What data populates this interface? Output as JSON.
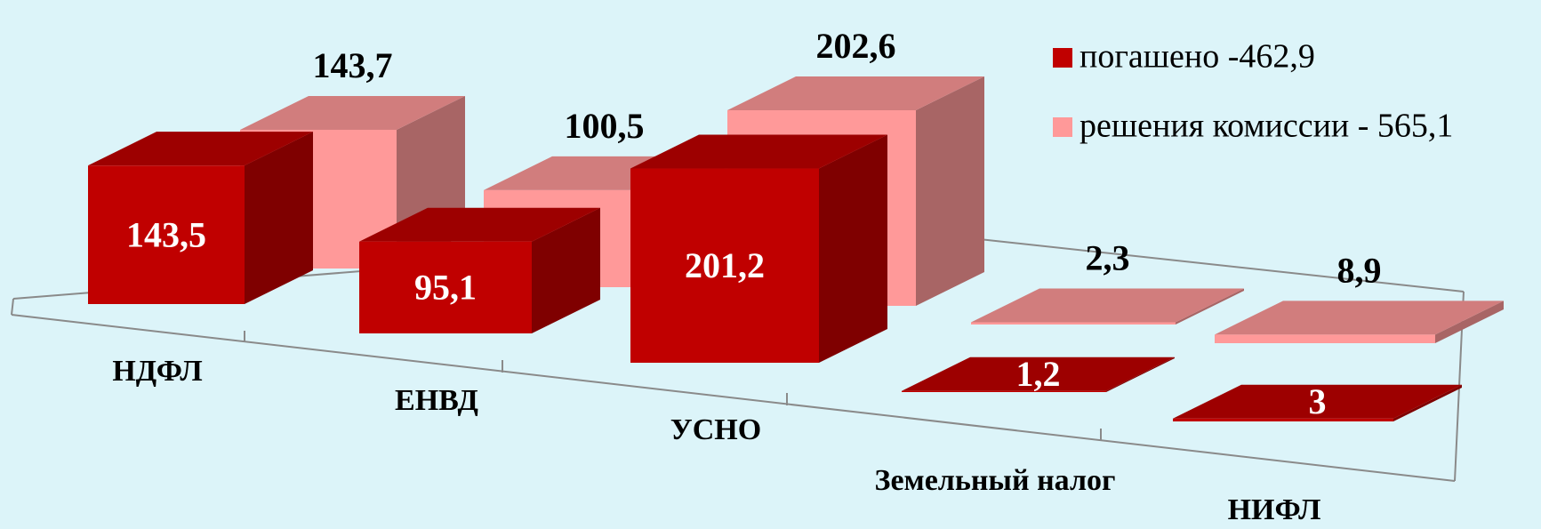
{
  "chart_data": {
    "type": "bar3d",
    "categories": [
      "НДФЛ",
      "ЕНВД",
      "УСНО",
      "Земельный налог",
      "НИФЛ"
    ],
    "series": [
      {
        "name": "погашено -462,9",
        "color": "#c00000",
        "values": [
          143.5,
          95.1,
          201.2,
          1.2,
          3
        ],
        "value_labels": [
          "143,5",
          "95,1",
          "201,2",
          "1,2",
          "3"
        ]
      },
      {
        "name": "решения комиссии - 565,1",
        "color": "#ff9999",
        "values": [
          143.7,
          100.5,
          202.6,
          2.3,
          8.9
        ],
        "value_labels": [
          "143,7",
          "100,5",
          "202,6",
          "2,3",
          "8,9"
        ]
      }
    ],
    "legend": "top-right"
  }
}
